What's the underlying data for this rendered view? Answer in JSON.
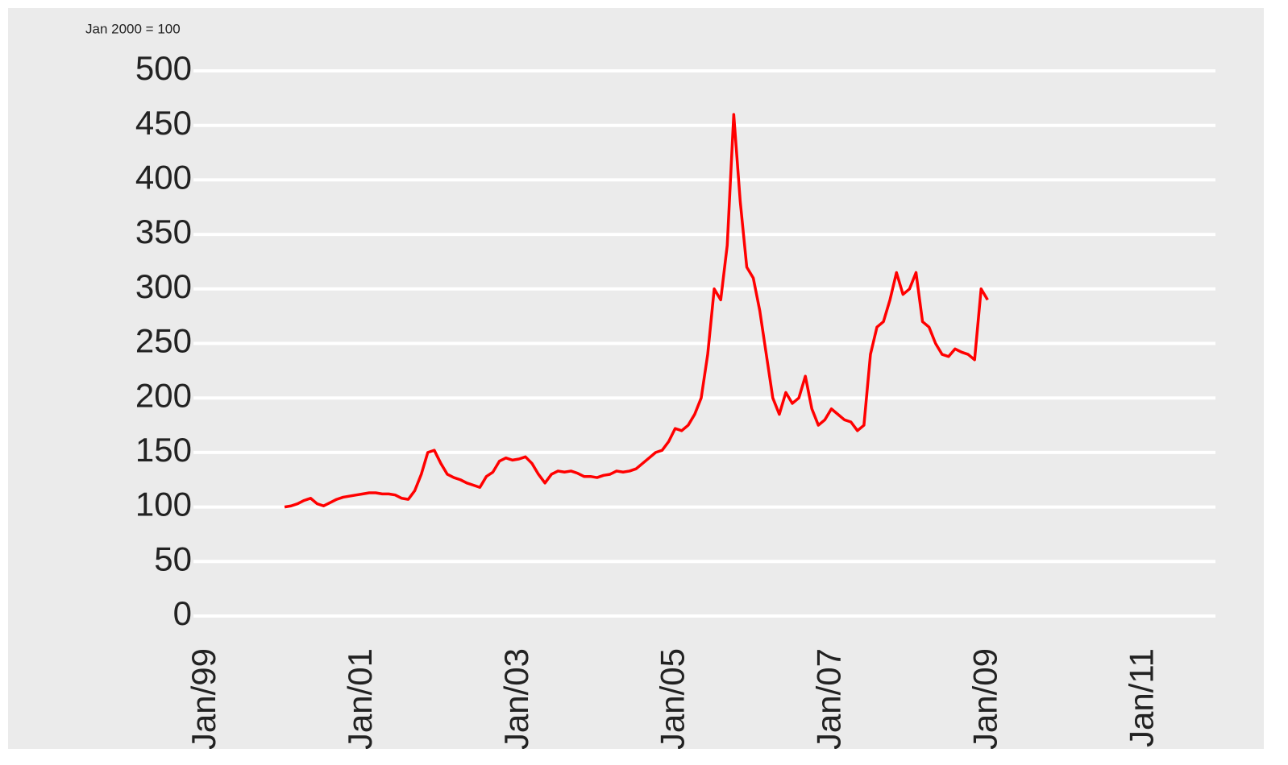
{
  "chart_data": {
    "type": "line",
    "subtitle": "Jan 2000 = 100",
    "x": [
      "2000-01",
      "2000-02",
      "2000-03",
      "2000-04",
      "2000-05",
      "2000-06",
      "2000-07",
      "2000-08",
      "2000-09",
      "2000-10",
      "2000-11",
      "2000-12",
      "2001-01",
      "2001-02",
      "2001-03",
      "2001-04",
      "2001-05",
      "2001-06",
      "2001-07",
      "2001-08",
      "2001-09",
      "2001-10",
      "2001-11",
      "2001-12",
      "2002-01",
      "2002-02",
      "2002-03",
      "2002-04",
      "2002-05",
      "2002-06",
      "2002-07",
      "2002-08",
      "2002-09",
      "2002-10",
      "2002-11",
      "2002-12",
      "2003-01",
      "2003-02",
      "2003-03",
      "2003-04",
      "2003-05",
      "2003-06",
      "2003-07",
      "2003-08",
      "2003-09",
      "2003-10",
      "2003-11",
      "2003-12",
      "2004-01",
      "2004-02",
      "2004-03",
      "2004-04",
      "2004-05",
      "2004-06",
      "2004-07",
      "2004-08",
      "2004-09",
      "2004-10",
      "2004-11",
      "2004-12",
      "2005-01",
      "2005-02",
      "2005-03",
      "2005-04",
      "2005-05",
      "2005-06",
      "2005-07",
      "2005-08",
      "2005-09",
      "2005-10",
      "2005-11",
      "2005-12",
      "2006-01",
      "2006-02",
      "2006-03",
      "2006-04",
      "2006-05",
      "2006-06",
      "2006-07",
      "2006-08",
      "2006-09",
      "2006-10",
      "2006-11",
      "2006-12",
      "2007-01",
      "2007-02",
      "2007-03",
      "2007-04",
      "2007-05",
      "2007-06",
      "2007-07",
      "2007-08",
      "2007-09",
      "2007-10",
      "2007-11",
      "2007-12",
      "2008-01",
      "2008-02",
      "2008-03",
      "2008-04",
      "2008-05",
      "2008-06",
      "2008-07",
      "2008-08",
      "2008-09",
      "2008-10",
      "2008-11",
      "2008-12",
      "2009-01"
    ],
    "series": [
      {
        "color": "#ff0000",
        "values": [
          100,
          101,
          103,
          106,
          108,
          103,
          101,
          104,
          107,
          109,
          110,
          111,
          112,
          113,
          113,
          112,
          112,
          111,
          108,
          107,
          115,
          130,
          150,
          152,
          140,
          130,
          127,
          125,
          122,
          120,
          118,
          128,
          132,
          142,
          145,
          143,
          144,
          146,
          140,
          130,
          122,
          130,
          133,
          132,
          133,
          131,
          128,
          128,
          127,
          129,
          130,
          133,
          132,
          133,
          135,
          140,
          145,
          150,
          152,
          160,
          172,
          170,
          175,
          185,
          200,
          240,
          300,
          290,
          340,
          460,
          380,
          320,
          310,
          280,
          240,
          200,
          185,
          205,
          195,
          200,
          220,
          190,
          175,
          180,
          190,
          185,
          180,
          178,
          170,
          175,
          240,
          265,
          270,
          290,
          315,
          295,
          300,
          315,
          270,
          265,
          250,
          240,
          238,
          245,
          242,
          240,
          235,
          300,
          290
        ]
      }
    ],
    "xlim": [
      "1998-11",
      "2011-12"
    ],
    "xticks": [
      {
        "value": "1999-01",
        "label": "Jan/99"
      },
      {
        "value": "2001-01",
        "label": "Jan/01"
      },
      {
        "value": "2003-01",
        "label": "Jan/03"
      },
      {
        "value": "2005-01",
        "label": "Jan/05"
      },
      {
        "value": "2007-01",
        "label": "Jan/07"
      },
      {
        "value": "2009-01",
        "label": "Jan/09"
      },
      {
        "value": "2011-01",
        "label": "Jan/11"
      }
    ],
    "ylim": [
      0,
      500
    ],
    "yticks": [
      0,
      50,
      100,
      150,
      200,
      250,
      300,
      350,
      400,
      450,
      500
    ],
    "grid": true
  }
}
